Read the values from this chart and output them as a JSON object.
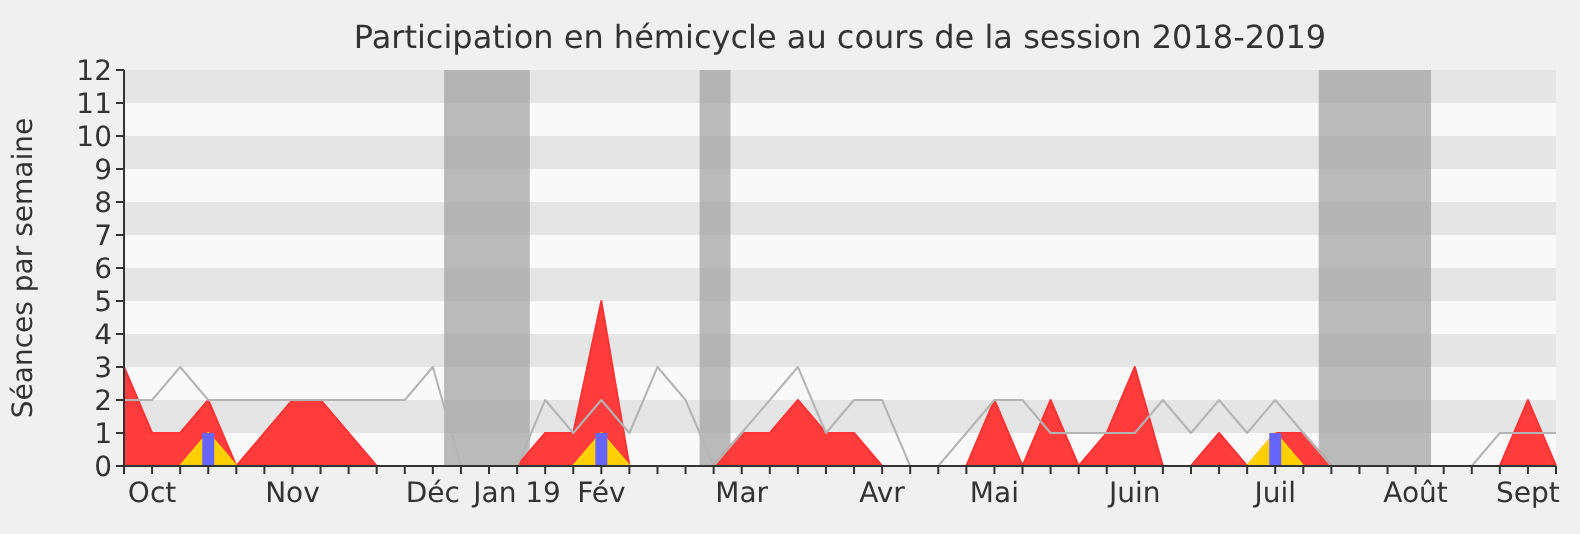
{
  "chart_data": {
    "type": "area",
    "title": "Participation en hémicycle au cours de la session 2018-2019",
    "ylabel": "Séances par semaine",
    "categories": [
      null,
      "Oct",
      null,
      null,
      null,
      null,
      "Nov",
      null,
      null,
      null,
      null,
      "Déc",
      null,
      null,
      "Jan 19",
      null,
      null,
      "Fév",
      null,
      null,
      null,
      null,
      "Mar",
      null,
      null,
      null,
      null,
      "Avr",
      null,
      null,
      null,
      "Mai",
      null,
      null,
      null,
      null,
      "Juin",
      null,
      null,
      null,
      null,
      "Juil",
      null,
      null,
      null,
      null,
      "Août",
      null,
      null,
      null,
      "Sept",
      null
    ],
    "series": [
      {
        "color": "#ff3333",
        "values": [
          3,
          1,
          1,
          2,
          0,
          1,
          2,
          2,
          1,
          0,
          0,
          0,
          0,
          0,
          0,
          1,
          1,
          5,
          0,
          0,
          0,
          0,
          1,
          1,
          2,
          1,
          1,
          0,
          0,
          0,
          0,
          2,
          0,
          2,
          0,
          1,
          3,
          0,
          0,
          1,
          0,
          1,
          1,
          0,
          0,
          0,
          0,
          0,
          0,
          0,
          2,
          0
        ]
      },
      {
        "type": "area",
        "color": "#ffd700",
        "values": [
          0,
          0,
          0,
          1,
          0,
          0,
          0,
          0,
          0,
          0,
          0,
          0,
          0,
          0,
          0,
          0,
          0,
          1,
          0,
          0,
          0,
          0,
          0,
          0,
          0,
          0,
          0,
          0,
          0,
          0,
          0,
          0,
          0,
          0,
          0,
          0,
          0,
          0,
          0,
          0,
          0,
          1,
          0,
          0,
          0,
          0,
          0,
          0,
          0,
          0,
          0,
          0
        ]
      },
      {
        "type": "bar",
        "color": "#6666ff",
        "values": [
          null,
          null,
          null,
          1,
          null,
          null,
          null,
          null,
          null,
          null,
          null,
          null,
          null,
          null,
          null,
          null,
          null,
          1,
          null,
          null,
          null,
          null,
          null,
          null,
          null,
          null,
          null,
          null,
          null,
          null,
          null,
          null,
          null,
          null,
          null,
          null,
          null,
          null,
          null,
          null,
          null,
          1,
          null,
          null,
          null,
          null,
          null,
          null,
          null,
          null,
          null,
          null
        ]
      },
      {
        "type": "line",
        "color": "#b4b4b4",
        "values": [
          2,
          2,
          3,
          2,
          2,
          2,
          2,
          2,
          2,
          2,
          2,
          3,
          0,
          0,
          0,
          2,
          1,
          2,
          1,
          3,
          2,
          0,
          1,
          2,
          3,
          1,
          2,
          2,
          0,
          0,
          1,
          2,
          2,
          1,
          1,
          1,
          1,
          2,
          1,
          2,
          1,
          2,
          1,
          0,
          0,
          0,
          0,
          0,
          0,
          1,
          1,
          1
        ]
      }
    ],
    "ylim": [
      0,
      12
    ],
    "yticks": [
      0,
      1,
      2,
      3,
      4,
      5,
      6,
      7,
      8,
      9,
      10,
      11,
      12
    ]
  }
}
